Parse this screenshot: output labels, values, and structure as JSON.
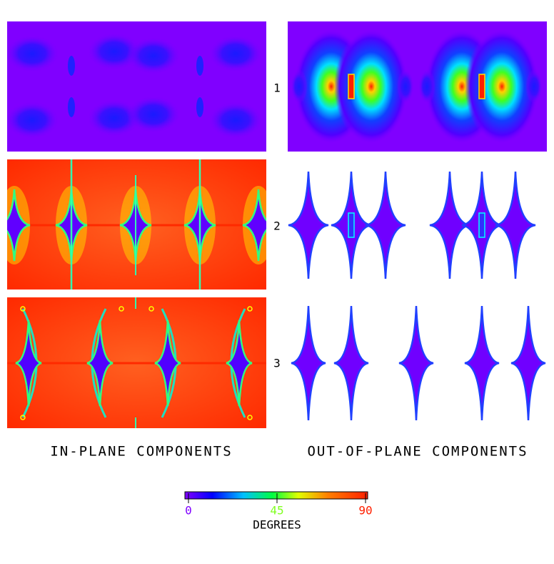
{
  "row_labels": [
    "1",
    "2",
    "3"
  ],
  "column_labels": [
    "IN-PLANE COMPONENTS",
    "OUT-OF-PLANE COMPONENTS"
  ],
  "colorbar": {
    "label": "DEGREES",
    "range": [
      0,
      90
    ],
    "ticks": [
      0,
      45,
      90
    ]
  }
}
